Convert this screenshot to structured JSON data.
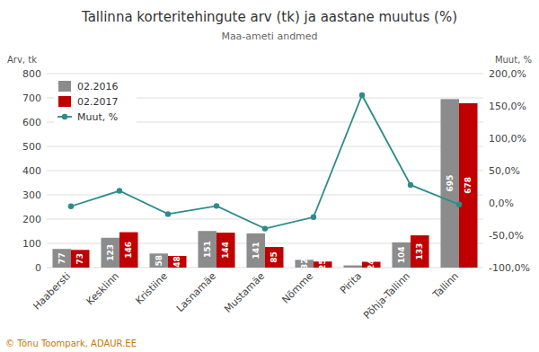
{
  "chart_data": {
    "type": "bar",
    "title": "Tallinna korteritehingute arv (tk) ja aastane muutus (%)",
    "subtitle": "Maa-ameti andmed",
    "ylabel": "Arv, tk",
    "y2label": "Muut, %",
    "categories": [
      "Haabersti",
      "Kesklinn",
      "Kristiine",
      "Lasnamäe",
      "Mustamäe",
      "Nõmme",
      "Pirita",
      "Põhja-Tallinn",
      "Tallinn"
    ],
    "series": [
      {
        "name": "02.2016",
        "color": "#8c8c8c",
        "values": [
          77,
          123,
          58,
          151,
          141,
          32,
          9,
          104,
          695
        ],
        "value_labels": [
          "77",
          "123",
          "58",
          "151",
          "141",
          "32",
          null,
          "104",
          "695"
        ]
      },
      {
        "name": "02.2017",
        "color": "#c00000",
        "values": [
          73,
          146,
          48,
          144,
          85,
          25,
          24,
          133,
          678
        ],
        "value_labels": [
          "73",
          "146",
          "48",
          "144",
          "85",
          "25",
          "24",
          "133",
          "678"
        ]
      },
      {
        "name": "Muut, %",
        "type": "line",
        "axis": "y2",
        "color": "#2e8b8b",
        "marker": "circle",
        "values": [
          -5.19,
          18.7,
          -17.24,
          -4.64,
          -39.72,
          -21.88,
          166.67,
          27.88,
          -2.45
        ]
      }
    ],
    "ylim": [
      0,
      800
    ],
    "yticks": [
      0,
      100,
      200,
      300,
      400,
      500,
      600,
      700,
      800
    ],
    "y2lim": [
      -100,
      200
    ],
    "y2ticks": [
      {
        "value": -100,
        "label": "-100,0%"
      },
      {
        "value": -50,
        "label": "-50,0%"
      },
      {
        "value": 0,
        "label": "0,0%"
      },
      {
        "value": 50,
        "label": "50,0%"
      },
      {
        "value": 100,
        "label": "100,0%"
      },
      {
        "value": 150,
        "label": "150,0%"
      },
      {
        "value": 200,
        "label": "200,0%"
      }
    ],
    "grid": true,
    "legend": "upper left",
    "data_labels": true,
    "annotations": [
      {
        "text": "© Tõnu Toompark, ADAUR.EE",
        "color": "#c87800"
      }
    ]
  }
}
